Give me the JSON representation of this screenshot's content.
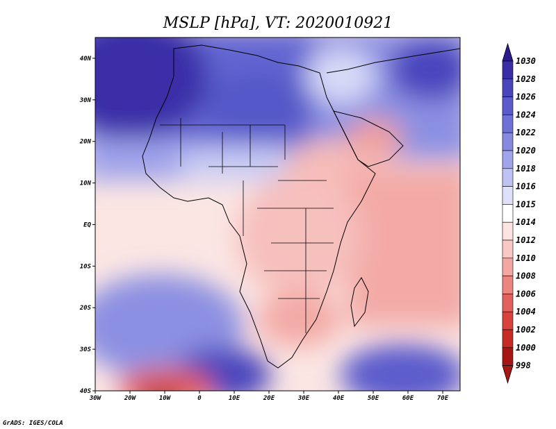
{
  "title": "MSLP [hPa], VT: 2020010921",
  "credit": "GrADS: IGES/COLA",
  "lon_labels": [
    "30W",
    "20W",
    "10W",
    "0",
    "10E",
    "20E",
    "30E",
    "40E",
    "50E",
    "60E",
    "70E"
  ],
  "lat_labels": [
    "40N",
    "30N",
    "20N",
    "10N",
    "EQ",
    "10S",
    "20S",
    "30S",
    "40S"
  ],
  "colorbar": {
    "levels": [
      "1030",
      "1028",
      "1026",
      "1024",
      "1022",
      "1020",
      "1018",
      "1016",
      "1015",
      "1014",
      "1012",
      "1010",
      "1008",
      "1006",
      "1004",
      "1002",
      "1000",
      "998"
    ],
    "colors": [
      "#2c1b8c",
      "#3a2ea7",
      "#4a44bd",
      "#5b5bcc",
      "#6e72d6",
      "#8589e0",
      "#a0a4ea",
      "#bfc3f3",
      "#dfe1fb",
      "#ffffff",
      "#fde3e1",
      "#f9c7c4",
      "#f3a7a3",
      "#ec8480",
      "#e3615c",
      "#d9433d",
      "#c82a26",
      "#a81614"
    ]
  },
  "map_extent": {
    "lon": [
      -30,
      75
    ],
    "lat": [
      -40,
      45
    ]
  }
}
